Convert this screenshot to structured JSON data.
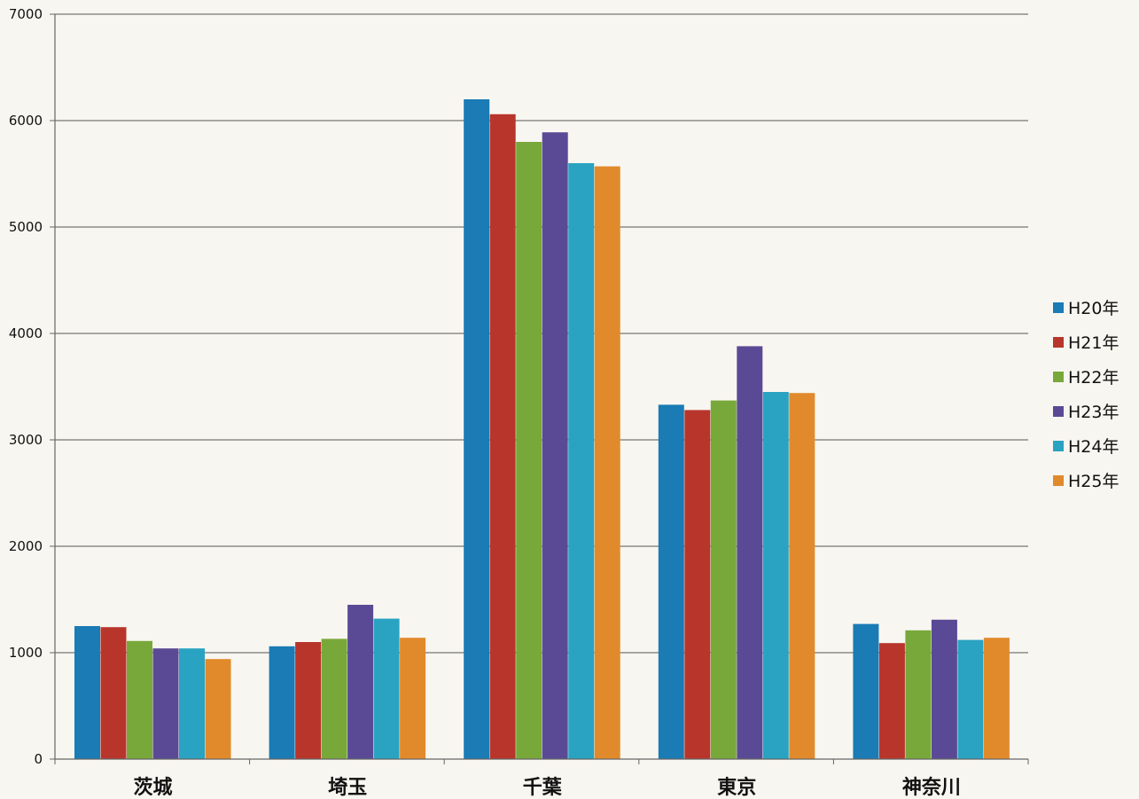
{
  "chart_data": {
    "type": "bar",
    "title": "",
    "xlabel": "",
    "ylabel": "",
    "ylim": [
      0,
      7000
    ],
    "y_ticks": [
      0,
      1000,
      2000,
      3000,
      4000,
      5000,
      6000,
      7000
    ],
    "grid": true,
    "legend_position": "right",
    "categories": [
      "茨城",
      "埼玉",
      "千葉",
      "東京",
      "神奈川"
    ],
    "series": [
      {
        "name": "H20年",
        "color": "#1a7bb5",
        "values": [
          1250,
          1060,
          6200,
          3330,
          1270
        ]
      },
      {
        "name": "H21年",
        "color": "#b8352c",
        "values": [
          1240,
          1100,
          6060,
          3280,
          1090
        ]
      },
      {
        "name": "H22年",
        "color": "#78a83a",
        "values": [
          1110,
          1130,
          5800,
          3370,
          1210
        ]
      },
      {
        "name": "H23年",
        "color": "#5a4a96",
        "values": [
          1040,
          1450,
          5890,
          3880,
          1310
        ]
      },
      {
        "name": "H24年",
        "color": "#2aa3c2",
        "values": [
          1040,
          1320,
          5600,
          3450,
          1120
        ]
      },
      {
        "name": "H25年",
        "color": "#e18a2c",
        "values": [
          940,
          1140,
          5570,
          3440,
          1140
        ]
      }
    ]
  }
}
